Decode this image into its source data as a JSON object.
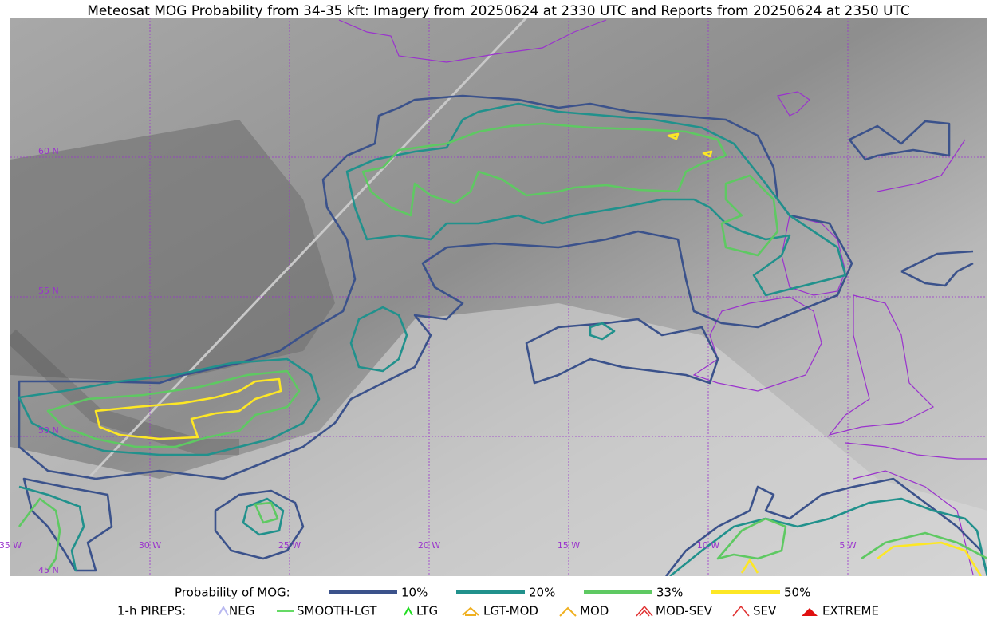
{
  "title": "Meteosat MOG Probability from 34-35 kft: Imagery from 20250624 at 2330 UTC and Reports from 20250624 at 2350 UTC",
  "map": {
    "latitude_labels": [
      "60 N",
      "55 N",
      "50 N",
      "45 N"
    ],
    "longitude_labels": [
      "35 W",
      "30 W",
      "25 W",
      "20 W",
      "15 W",
      "10 W",
      "5 W"
    ]
  },
  "legend": {
    "probability_label": "Probability of MOG:",
    "probability_levels": [
      {
        "label": "10%",
        "color": "#3b528b"
      },
      {
        "label": "20%",
        "color": "#21918c"
      },
      {
        "label": "33%",
        "color": "#5ec962"
      },
      {
        "label": "50%",
        "color": "#fde725"
      }
    ],
    "pireps_label": "1-h PIREPS:",
    "pireps": [
      "NEG",
      "SMOOTH-LGT",
      "LTG",
      "LGT-MOD",
      "MOD",
      "MOD-SEV",
      "SEV",
      "EXTREME"
    ]
  }
}
